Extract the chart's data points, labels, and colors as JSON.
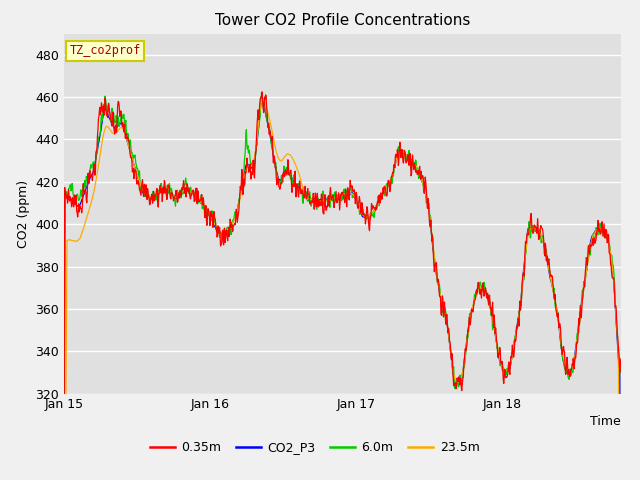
{
  "title": "Tower CO2 Profile Concentrations",
  "xlabel": "Time",
  "ylabel": "CO2 (ppm)",
  "ylim": [
    320,
    490
  ],
  "yticks": [
    320,
    340,
    360,
    380,
    400,
    420,
    440,
    460,
    480
  ],
  "fig_bg": "#f0f0f0",
  "plot_bg": "#e0e0e0",
  "legend_label": "TZ_co2prof",
  "series": [
    {
      "label": "0.35m",
      "color": "#ff0000"
    },
    {
      "label": "CO2_P3",
      "color": "#0000ff"
    },
    {
      "label": "6.0m",
      "color": "#00cc00"
    },
    {
      "label": "23.5m",
      "color": "#ffaa00"
    }
  ],
  "xticklabels": [
    "Jan 15",
    "Jan 16",
    "Jan 17",
    "Jan 18"
  ],
  "xtick_positions": [
    0,
    288,
    576,
    864
  ],
  "n_points": 1100
}
